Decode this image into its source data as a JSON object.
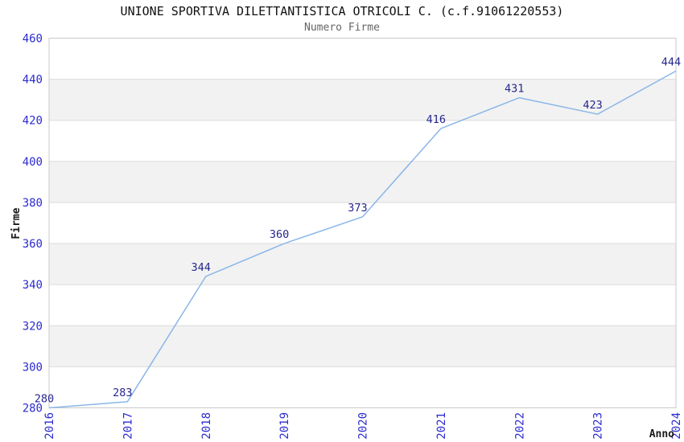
{
  "chart_data": {
    "type": "line",
    "title": "UNIONE SPORTIVA DILETTANTISTICA OTRICOLI C. (c.f.91061220553)",
    "subtitle": "Numero Firme",
    "x": [
      "2016",
      "2017",
      "2018",
      "2019",
      "2020",
      "2021",
      "2022",
      "2023",
      "2024"
    ],
    "series": [
      {
        "name": "Numero Firme",
        "values": [
          280,
          283,
          344,
          360,
          373,
          416,
          431,
          423,
          444
        ]
      }
    ],
    "data_labels": [
      "280",
      "283",
      "344",
      "360",
      "373",
      "416",
      "431",
      "423",
      "444"
    ],
    "xlabel": "Anno",
    "ylabel": "Firme",
    "ylim": [
      280,
      460
    ],
    "yticks": [
      280,
      300,
      320,
      340,
      360,
      380,
      400,
      420,
      440,
      460
    ],
    "grid": "horizontal",
    "background_bands": "alternating",
    "legend": "none",
    "colors": {
      "line": "#8AB6E8",
      "tick_label": "#2B2BD0",
      "data_label": "#26268C",
      "band": "#F2F2F2",
      "grid": "#DBDBDB",
      "border": "#C9C9C9",
      "title": "#111111",
      "subtitle": "#666666",
      "axis_title": "#1A1A1A"
    }
  }
}
